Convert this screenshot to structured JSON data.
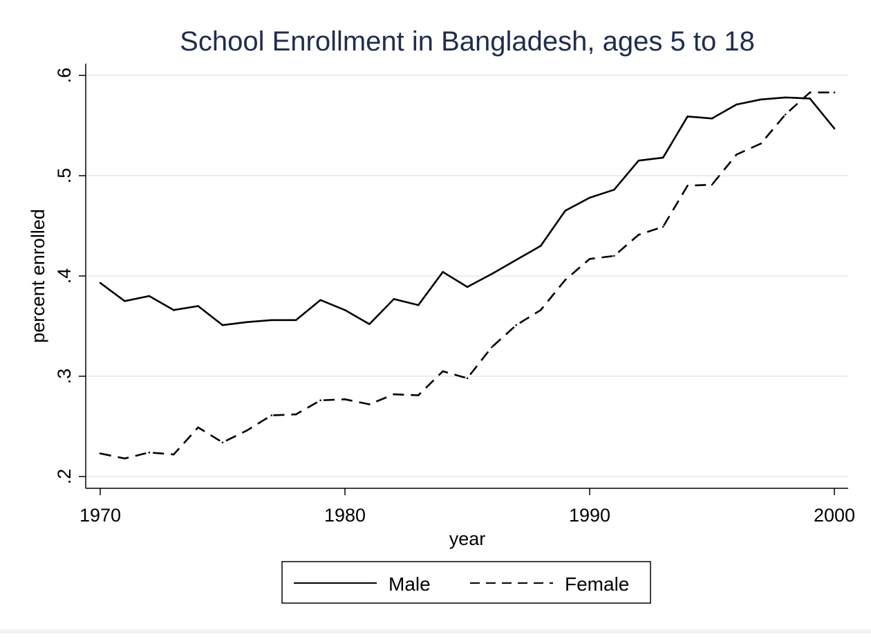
{
  "chart_data": {
    "type": "line",
    "title": "School Enrollment in Bangladesh, ages 5 to 18",
    "xlabel": "year",
    "ylabel": "percent enrolled",
    "xlim": [
      1970,
      2000
    ],
    "ylim": [
      0.2,
      0.6
    ],
    "x_ticks": [
      1970,
      1980,
      1990,
      2000
    ],
    "x_tick_labels": [
      "1970",
      "1980",
      "1990",
      "2000"
    ],
    "y_ticks": [
      0.2,
      0.3,
      0.4,
      0.5,
      0.6
    ],
    "y_tick_labels": [
      ".2",
      ".3",
      ".4",
      ".5",
      ".6"
    ],
    "grid": true,
    "legend_position": "bottom",
    "x": [
      1970,
      1971,
      1972,
      1973,
      1974,
      1975,
      1976,
      1977,
      1978,
      1979,
      1980,
      1981,
      1982,
      1983,
      1984,
      1985,
      1986,
      1987,
      1988,
      1989,
      1990,
      1991,
      1992,
      1993,
      1994,
      1995,
      1996,
      1997,
      1998,
      1999,
      2000
    ],
    "series": [
      {
        "name": "Male",
        "style": "solid",
        "values": [
          0.393,
          0.375,
          0.38,
          0.366,
          0.37,
          0.351,
          0.354,
          0.356,
          0.356,
          0.376,
          0.366,
          0.352,
          0.377,
          0.371,
          0.404,
          0.389,
          0.402,
          0.416,
          0.43,
          0.465,
          0.478,
          0.486,
          0.515,
          0.518,
          0.559,
          0.557,
          0.571,
          0.576,
          0.578,
          0.577,
          0.547
        ]
      },
      {
        "name": "Female",
        "style": "dashed",
        "values": [
          0.223,
          0.218,
          0.224,
          0.222,
          0.249,
          0.234,
          0.246,
          0.261,
          0.262,
          0.276,
          0.277,
          0.272,
          0.282,
          0.281,
          0.305,
          0.298,
          0.329,
          0.351,
          0.366,
          0.396,
          0.417,
          0.42,
          0.441,
          0.449,
          0.49,
          0.491,
          0.521,
          0.532,
          0.561,
          0.583,
          0.583
        ]
      }
    ],
    "colors": {
      "title": "#1f2d4d",
      "grid": "#e6edef",
      "lines": "#000000",
      "axis": "#000000"
    }
  }
}
